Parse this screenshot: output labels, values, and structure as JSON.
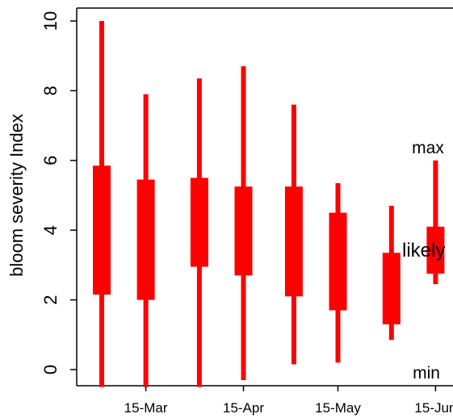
{
  "chart_data": {
    "type": "boxplot",
    "title": "",
    "ylabel": "bloom severity Index",
    "xlabel": "",
    "ylim": [
      0,
      10
    ],
    "y_ticks": [
      "0",
      "2",
      "4",
      "6",
      "8",
      "10"
    ],
    "x_tick_labels": [
      {
        "label": "15-Mar",
        "date": "2023-03-15"
      },
      {
        "label": "15-Apr",
        "date": "2023-04-15"
      },
      {
        "label": "15-May",
        "date": "2023-05-15"
      },
      {
        "label": "15-Jun",
        "date": "2023-06-15"
      }
    ],
    "forecasts": [
      {
        "date": "2023-03-01",
        "min": -0.5,
        "likely_low": 2.15,
        "likely_high": 5.85,
        "max": 10.0
      },
      {
        "date": "2023-03-15",
        "min": -0.5,
        "likely_low": 2.0,
        "likely_high": 5.45,
        "max": 7.9
      },
      {
        "date": "2023-04-01",
        "min": -0.5,
        "likely_low": 2.95,
        "likely_high": 5.5,
        "max": 8.35
      },
      {
        "date": "2023-04-15",
        "min": -0.3,
        "likely_low": 2.7,
        "likely_high": 5.25,
        "max": 8.7
      },
      {
        "date": "2023-05-01",
        "min": 0.15,
        "likely_low": 2.1,
        "likely_high": 5.25,
        "max": 7.6
      },
      {
        "date": "2023-05-15",
        "min": 0.2,
        "likely_low": 1.7,
        "likely_high": 4.5,
        "max": 5.35
      },
      {
        "date": "2023-06-01",
        "min": 0.85,
        "likely_low": 1.3,
        "likely_high": 3.35,
        "max": 4.7
      },
      {
        "date": "2023-06-15",
        "min": 2.45,
        "likely_low": 2.75,
        "likely_high": 4.1,
        "max": 6.0
      }
    ],
    "annotations": {
      "max": "max",
      "likely": "likely",
      "min": "min"
    },
    "color": "#ff0000",
    "grid": false,
    "legend": "none"
  }
}
